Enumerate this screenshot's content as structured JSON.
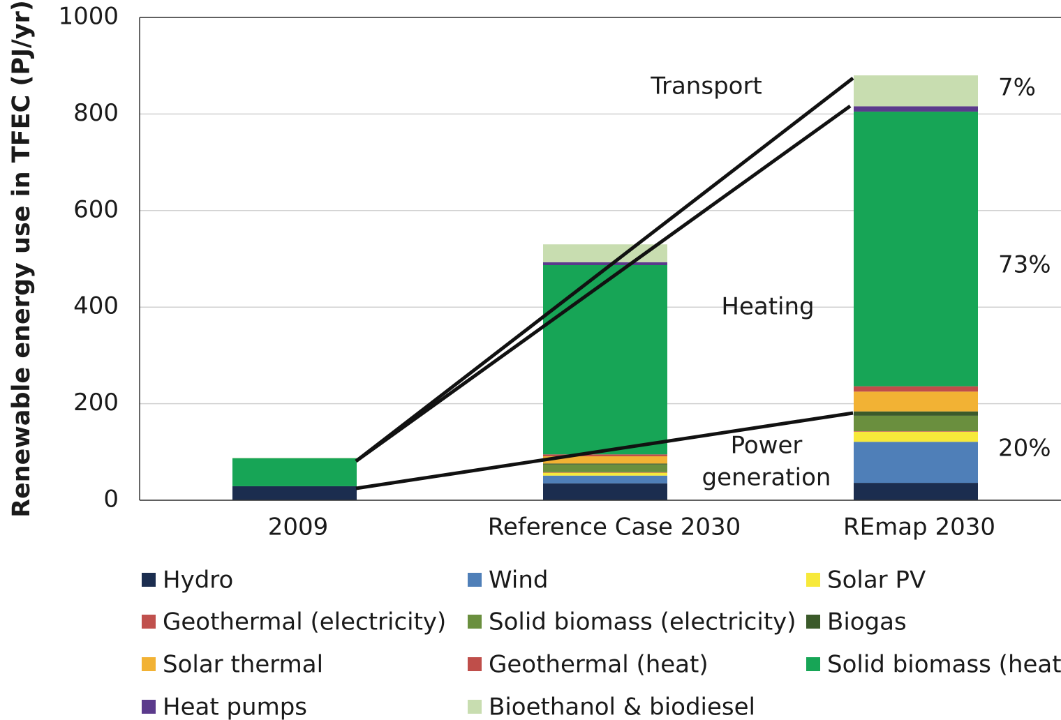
{
  "chart_data": {
    "type": "stacked_bar",
    "ylabel": "Renewable energy use in TFEC (PJ/yr)",
    "categories": [
      "2009",
      "Reference Case 2030",
      "REmap 2030"
    ],
    "series": [
      {
        "name": "Hydro",
        "color": "#1b2d4f",
        "values": [
          29,
          35,
          36
        ]
      },
      {
        "name": "Wind",
        "color": "#4f7fb8",
        "values": [
          0,
          16,
          85
        ]
      },
      {
        "name": "Solar PV",
        "color": "#f7e93a",
        "values": [
          0,
          6,
          21
        ]
      },
      {
        "name": "Geothermal (electricity)",
        "color": "#c0504d",
        "values": [
          0,
          1,
          1
        ]
      },
      {
        "name": "Solid biomass (electricity)",
        "color": "#6a8f3e",
        "values": [
          0,
          16,
          32
        ]
      },
      {
        "name": "Biogas",
        "color": "#3b5a2a",
        "values": [
          0,
          2,
          9
        ]
      },
      {
        "name": "Solar thermal",
        "color": "#f2b234",
        "values": [
          0,
          15,
          41
        ]
      },
      {
        "name": "Geothermal (heat)",
        "color": "#bf4e4a",
        "values": [
          0,
          4,
          11
        ]
      },
      {
        "name": "Solid biomass (heat)",
        "color": "#17a556",
        "values": [
          58,
          392,
          569
        ]
      },
      {
        "name": "Heat pumps",
        "color": "#5b3a8c",
        "values": [
          0,
          6,
          11
        ]
      },
      {
        "name": "Bioethanol & biodiesel",
        "color": "#c8ddb0",
        "values": [
          1,
          37,
          64
        ]
      }
    ],
    "ylim": [
      0,
      1000
    ],
    "yticks": [
      0,
      200,
      400,
      600,
      800,
      1000
    ],
    "grid": true,
    "annotations": [
      {
        "lines": [
          "Transport"
        ]
      },
      {
        "lines": [
          "Heating"
        ]
      },
      {
        "lines": [
          "Power",
          "generation"
        ]
      },
      {
        "lines": [
          "7%"
        ]
      },
      {
        "lines": [
          "73%"
        ]
      },
      {
        "lines": [
          "20%"
        ]
      }
    ]
  }
}
